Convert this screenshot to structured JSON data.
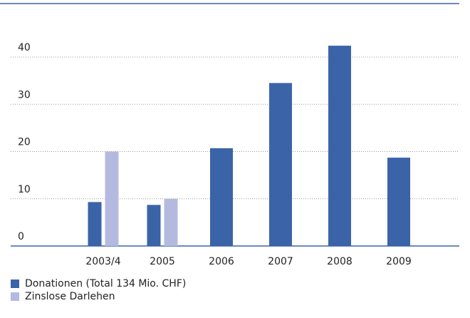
{
  "chart_data": {
    "type": "bar",
    "categories": [
      "2003/4",
      "2005",
      "2006",
      "2007",
      "2008",
      "2009"
    ],
    "series": [
      {
        "name": "Donationen (Total 134 Mio. CHF)",
        "color": "#3b63a8",
        "values": [
          9.3,
          8.7,
          20.7,
          34.5,
          42.4,
          18.7
        ]
      },
      {
        "name": "Zinslose Darlehen",
        "color": "#b4badf",
        "values": [
          20,
          10,
          null,
          null,
          null,
          null
        ]
      }
    ],
    "ylim": [
      0,
      40
    ],
    "yticks": [
      0,
      10,
      20,
      30,
      40
    ],
    "grid": true,
    "legend": "bottom-left"
  }
}
